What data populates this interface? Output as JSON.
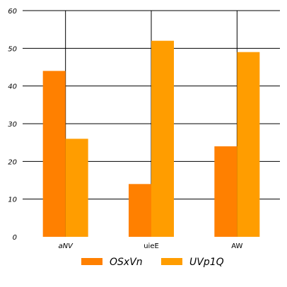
{
  "chart_data": {
    "type": "bar",
    "categories": [
      "aNV",
      "uieE",
      "AW"
    ],
    "series": [
      {
        "name": "OSxVn",
        "values": [
          44,
          14,
          24
        ],
        "color": "#ff8000"
      },
      {
        "name": "UVp1Q",
        "values": [
          26,
          52,
          49
        ],
        "color": "#ff9d00"
      }
    ],
    "ylim": [
      0,
      60
    ],
    "yticks": [
      0,
      10,
      20,
      30,
      40,
      50,
      60
    ],
    "grid": "horizontal and vertical",
    "legend": "bottom",
    "title": "",
    "xlabel": "",
    "ylabel": ""
  }
}
